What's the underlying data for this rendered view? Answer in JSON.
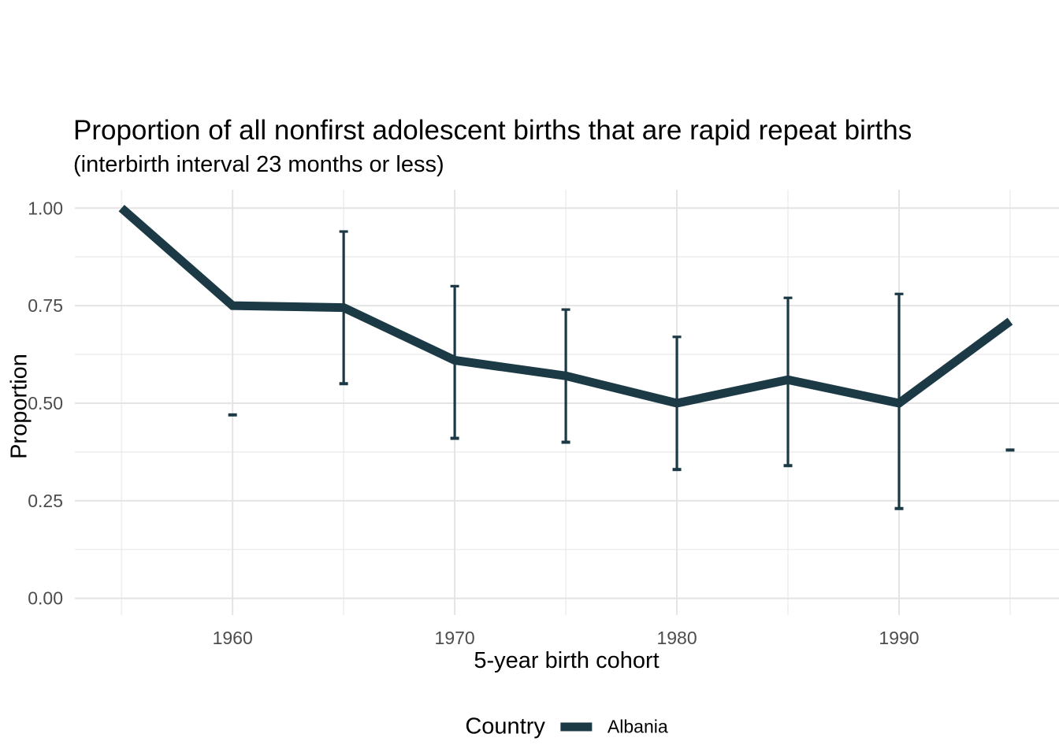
{
  "title": "Proportion of all nonfirst adolescent births that are rapid repeat births",
  "subtitle": "(interbirth interval 23 months or less)",
  "axes": {
    "x_label": "5-year birth cohort",
    "y_label": "Proportion"
  },
  "legend": {
    "title": "Country",
    "entries": [
      {
        "label": "Albania",
        "color": "#1c3a46",
        "swatch": "thick-line"
      }
    ],
    "position": "bottom"
  },
  "colors": {
    "background": "#ffffff",
    "line": "#1c3a46",
    "grid_major": "#e4e4e4",
    "grid_minor": "#ebebeb",
    "tick_text": "#4d4d4d",
    "text": "#000000"
  },
  "chart_data": {
    "type": "line",
    "title": "Proportion of all nonfirst adolescent births that are rapid repeat births",
    "subtitle": "(interbirth interval 23 months or less)",
    "xlabel": "5-year birth cohort",
    "ylabel": "Proportion",
    "xlim": [
      1952.9,
      1997.2
    ],
    "ylim": [
      -0.043,
      1.047
    ],
    "x_major_ticks": [
      {
        "value": 1960,
        "label": "1960"
      },
      {
        "value": 1970,
        "label": "1970"
      },
      {
        "value": 1980,
        "label": "1980"
      },
      {
        "value": 1990,
        "label": "1990"
      }
    ],
    "x_minor_gridlines": [
      1955,
      1965,
      1975,
      1985,
      1995
    ],
    "y_major_ticks": [
      {
        "value": 0.0,
        "label": "0.00"
      },
      {
        "value": 0.25,
        "label": "0.25"
      },
      {
        "value": 0.5,
        "label": "0.50"
      },
      {
        "value": 0.75,
        "label": "0.75"
      },
      {
        "value": 1.0,
        "label": "1.00"
      }
    ],
    "y_minor_gridlines": [
      0.125,
      0.375,
      0.625,
      0.875
    ],
    "grid": "major and minor gridlines, no axis lines, no tick marks (minimal theme)",
    "legend_position": "bottom",
    "legend_title": "Country",
    "series": [
      {
        "name": "Albania",
        "color": "#1c3a46",
        "line_width": 11,
        "error_bars": true,
        "points": [
          {
            "cohort": 1955,
            "proportion": 1.0,
            "ci_low": null,
            "ci_high": null
          },
          {
            "cohort": 1960,
            "proportion": 0.75,
            "ci_low": 0.47,
            "ci_high": 0.47
          },
          {
            "cohort": 1965,
            "proportion": 0.745,
            "ci_low": 0.55,
            "ci_high": 0.94
          },
          {
            "cohort": 1970,
            "proportion": 0.61,
            "ci_low": 0.41,
            "ci_high": 0.8
          },
          {
            "cohort": 1975,
            "proportion": 0.57,
            "ci_low": 0.4,
            "ci_high": 0.74
          },
          {
            "cohort": 1980,
            "proportion": 0.5,
            "ci_low": 0.33,
            "ci_high": 0.67
          },
          {
            "cohort": 1985,
            "proportion": 0.56,
            "ci_low": 0.34,
            "ci_high": 0.77
          },
          {
            "cohort": 1990,
            "proportion": 0.5,
            "ci_low": 0.23,
            "ci_high": 0.78
          },
          {
            "cohort": 1995,
            "proportion": 0.71,
            "ci_low": 0.38,
            "ci_high": 0.38
          }
        ]
      }
    ]
  }
}
